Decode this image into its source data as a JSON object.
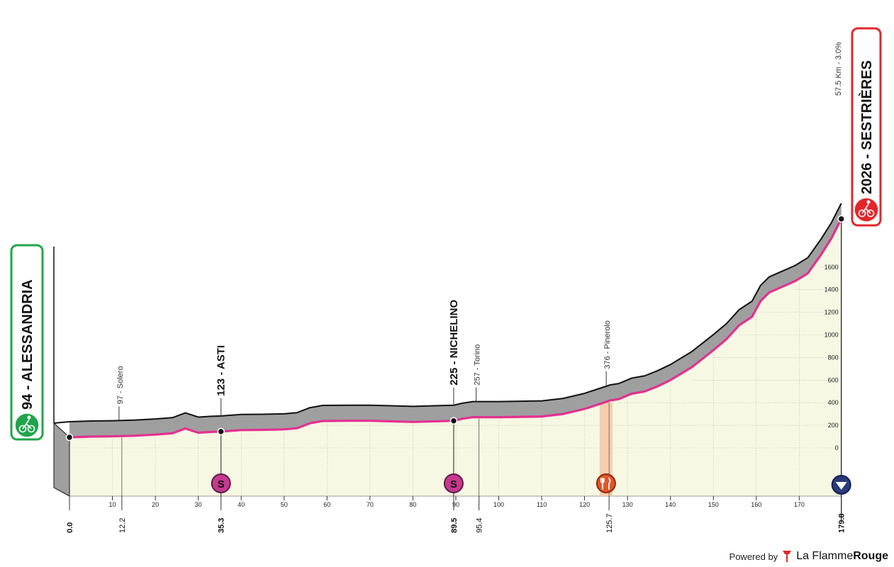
{
  "chart_data": {
    "type": "area",
    "start": {
      "label": "94 - ALESSANDRIA",
      "km": 0.0,
      "alt": 94
    },
    "finish": {
      "label": "2026 - SESTRIÈRES",
      "km": 179.8,
      "alt": 2026,
      "climb": "57.5 Km - 3.0%"
    },
    "x_ticks": [
      10,
      20,
      30,
      40,
      50,
      60,
      70,
      80,
      90,
      100,
      110,
      120,
      130,
      140,
      150,
      160,
      170
    ],
    "y_ticks": [
      {
        "v": 0,
        "label": "0"
      },
      {
        "v": 200,
        "label": "200"
      },
      {
        "v": 400,
        "label": "400"
      },
      {
        "v": 600,
        "label": "600"
      },
      {
        "v": 800,
        "label": "800"
      },
      {
        "v": 1000,
        "label": "1000"
      },
      {
        "v": 1200,
        "label": "1200"
      },
      {
        "v": 1400,
        "label": "1400"
      },
      {
        "v": 1600,
        "label": "1600"
      }
    ],
    "xlim": [
      0,
      179.8
    ],
    "profile": [
      [
        0,
        94
      ],
      [
        5,
        100
      ],
      [
        10,
        103
      ],
      [
        15,
        108
      ],
      [
        20,
        118
      ],
      [
        24,
        130
      ],
      [
        27,
        172
      ],
      [
        30,
        135
      ],
      [
        33,
        142
      ],
      [
        35.3,
        145
      ],
      [
        40,
        158
      ],
      [
        45,
        160
      ],
      [
        50,
        164
      ],
      [
        53,
        174
      ],
      [
        56,
        218
      ],
      [
        59,
        238
      ],
      [
        65,
        240
      ],
      [
        70,
        240
      ],
      [
        75,
        235
      ],
      [
        80,
        230
      ],
      [
        85,
        235
      ],
      [
        89.5,
        240
      ],
      [
        91.5,
        258
      ],
      [
        94,
        272
      ],
      [
        100,
        272
      ],
      [
        110,
        278
      ],
      [
        115,
        300
      ],
      [
        120,
        345
      ],
      [
        124,
        395
      ],
      [
        126,
        420
      ],
      [
        128,
        432
      ],
      [
        131,
        480
      ],
      [
        134,
        500
      ],
      [
        137,
        545
      ],
      [
        140,
        600
      ],
      [
        145,
        715
      ],
      [
        150,
        865
      ],
      [
        153,
        960
      ],
      [
        156,
        1085
      ],
      [
        159,
        1160
      ],
      [
        161,
        1300
      ],
      [
        163,
        1375
      ],
      [
        166,
        1425
      ],
      [
        169,
        1475
      ],
      [
        172,
        1545
      ],
      [
        175,
        1705
      ],
      [
        177.5,
        1855
      ],
      [
        179.8,
        2026
      ]
    ],
    "places": [
      {
        "label": "97 - Solero",
        "km": 12.2,
        "kind": "minor"
      },
      {
        "label": "123 - ASTI",
        "km": 35.3,
        "kind": "major"
      },
      {
        "label": "225 - NICHELINO",
        "km": 89.5,
        "kind": "major"
      },
      {
        "label": "257 - Torino",
        "km": 95.4,
        "kind": "minor"
      },
      {
        "label": "376 - Pinerolo",
        "km": 125.7,
        "kind": "minor"
      }
    ],
    "km_marks": [
      {
        "km": 0.0,
        "label": "0.0"
      },
      {
        "km": 12.2,
        "label": "12.2"
      },
      {
        "km": 35.3,
        "label": "35.3"
      },
      {
        "km": 89.5,
        "label": "89.5"
      },
      {
        "km": 95.4,
        "label": "95.4"
      },
      {
        "km": 125.7,
        "label": "125.7"
      },
      {
        "km": 179.8,
        "label": "179.8"
      }
    ],
    "sprints": [
      {
        "km": 35.3,
        "letter": "S"
      },
      {
        "km": 89.5,
        "letter": "S"
      }
    ],
    "feed_zone": {
      "from": 123.5,
      "to": 126.5,
      "icon": "fork-knife-icon"
    },
    "finish_icon": "finish-triangle-icon",
    "colors": {
      "profile_fill": "#f6f8e3",
      "band": "#9f9fa0",
      "route": "#e2318f",
      "start_border": "#1fa54a",
      "finish_border": "#e2272b",
      "feed": "#f5c9a6"
    }
  },
  "footer": {
    "powered_by": "Powered by",
    "brand_left": "La Flamme",
    "brand_right": "Rouge"
  }
}
